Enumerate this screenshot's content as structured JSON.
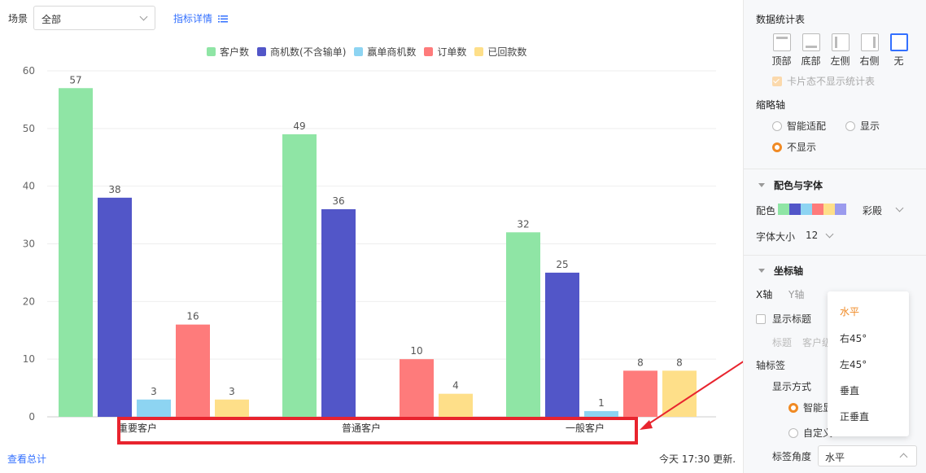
{
  "header": {
    "scene_label": "场景",
    "scene_value": "全部",
    "metric_link": "指标详情"
  },
  "colors": {
    "customer": "#8fe5a5",
    "opportunity": "#5256c8",
    "won": "#8dd4f2",
    "order": "#fe7b7b",
    "payment": "#fedf89",
    "accent": "#f08a24",
    "link": "#3370ff",
    "highlight_box": "#e8242e"
  },
  "chart_data": {
    "type": "bar",
    "categories": [
      "重要客户",
      "普通客户",
      "一般客户"
    ],
    "series": [
      {
        "name": "客户数",
        "values": [
          57,
          49,
          32
        ]
      },
      {
        "name": "商机数(不含输单)",
        "values": [
          38,
          36,
          25
        ]
      },
      {
        "name": "赢单商机数",
        "values": [
          3,
          0,
          1
        ]
      },
      {
        "name": "订单数",
        "values": [
          16,
          10,
          8
        ]
      },
      {
        "name": "已回款数",
        "values": [
          3,
          4,
          8
        ]
      }
    ],
    "ylim": [
      0,
      60
    ],
    "yticks": [
      0,
      10,
      20,
      30,
      40,
      50,
      60
    ],
    "legend": "top",
    "grid": true
  },
  "footer": {
    "summary_link": "查看总计",
    "updated": "今天 17:30 更新."
  },
  "panel": {
    "stats_title": "数据统计表",
    "positions": [
      "顶部",
      "底部",
      "左侧",
      "右侧",
      "无"
    ],
    "selected_position": "无",
    "card_option": "卡片态不显示统计表",
    "thumb_title": "缩略轴",
    "thumb_options": [
      "智能适配",
      "显示",
      "不显示"
    ],
    "thumb_selected": "不显示",
    "color_font_title": "配色与字体",
    "palette_label": "配色",
    "palette_name": "彩殿",
    "palette_colors": [
      "#8fe5a5",
      "#5256c8",
      "#8dd4f2",
      "#fe7b7b",
      "#fedf89",
      "#9b9bee"
    ],
    "font_size_label": "字体大小",
    "font_size_value": "12",
    "axis_title": "坐标轴",
    "axis_tabs": [
      "X轴",
      "Y轴"
    ],
    "show_title": "显示标题",
    "title_label": "标题",
    "title_value": "客户级",
    "axis_label_title": "轴标签",
    "display_mode": "显示方式",
    "display_opt1": "智能显",
    "display_opt2": "自定义",
    "angle_label": "标签角度",
    "angle_value": "水平"
  },
  "dropdown": {
    "options": [
      "水平",
      "右45°",
      "左45°",
      "垂直",
      "正垂直"
    ],
    "selected": "水平"
  }
}
